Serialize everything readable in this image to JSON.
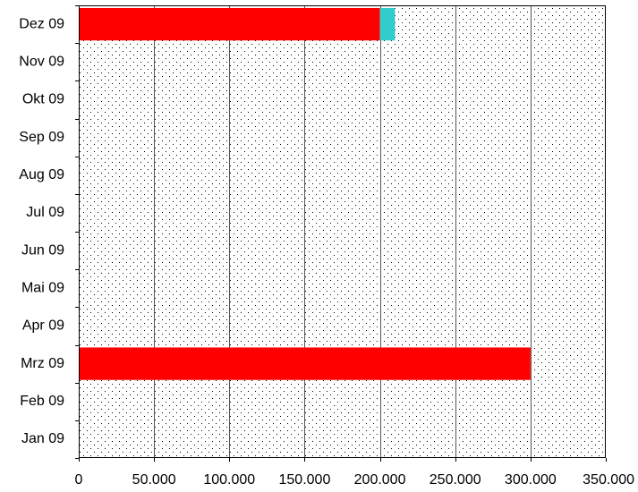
{
  "chart_data": {
    "type": "bar",
    "orientation": "horizontal",
    "stacked": true,
    "title": "",
    "xlabel": "",
    "ylabel": "",
    "categories": [
      "Jan 09",
      "Feb 09",
      "Mrz 09",
      "Apr 09",
      "Mai 09",
      "Jun 09",
      "Jul 09",
      "Aug 09",
      "Sep 09",
      "Okt 09",
      "Nov 09",
      "Dez 09"
    ],
    "series": [
      {
        "color": "#ff0000",
        "values": [
          0,
          0,
          300000,
          0,
          0,
          0,
          0,
          0,
          0,
          0,
          0,
          200000
        ]
      },
      {
        "color": "#33cccc",
        "values": [
          0,
          0,
          0,
          0,
          0,
          0,
          0,
          0,
          0,
          0,
          0,
          10000
        ]
      }
    ],
    "xlim": [
      0,
      350000
    ],
    "xticks": [
      0,
      50000,
      100000,
      150000,
      200000,
      250000,
      300000,
      350000
    ],
    "xtick_labels": [
      "0",
      "50.000",
      "100.000",
      "150.000",
      "200.000",
      "250.000",
      "300.000",
      "350.000"
    ],
    "grid": "vertical",
    "legend": "none",
    "plot_background": "dotted"
  }
}
